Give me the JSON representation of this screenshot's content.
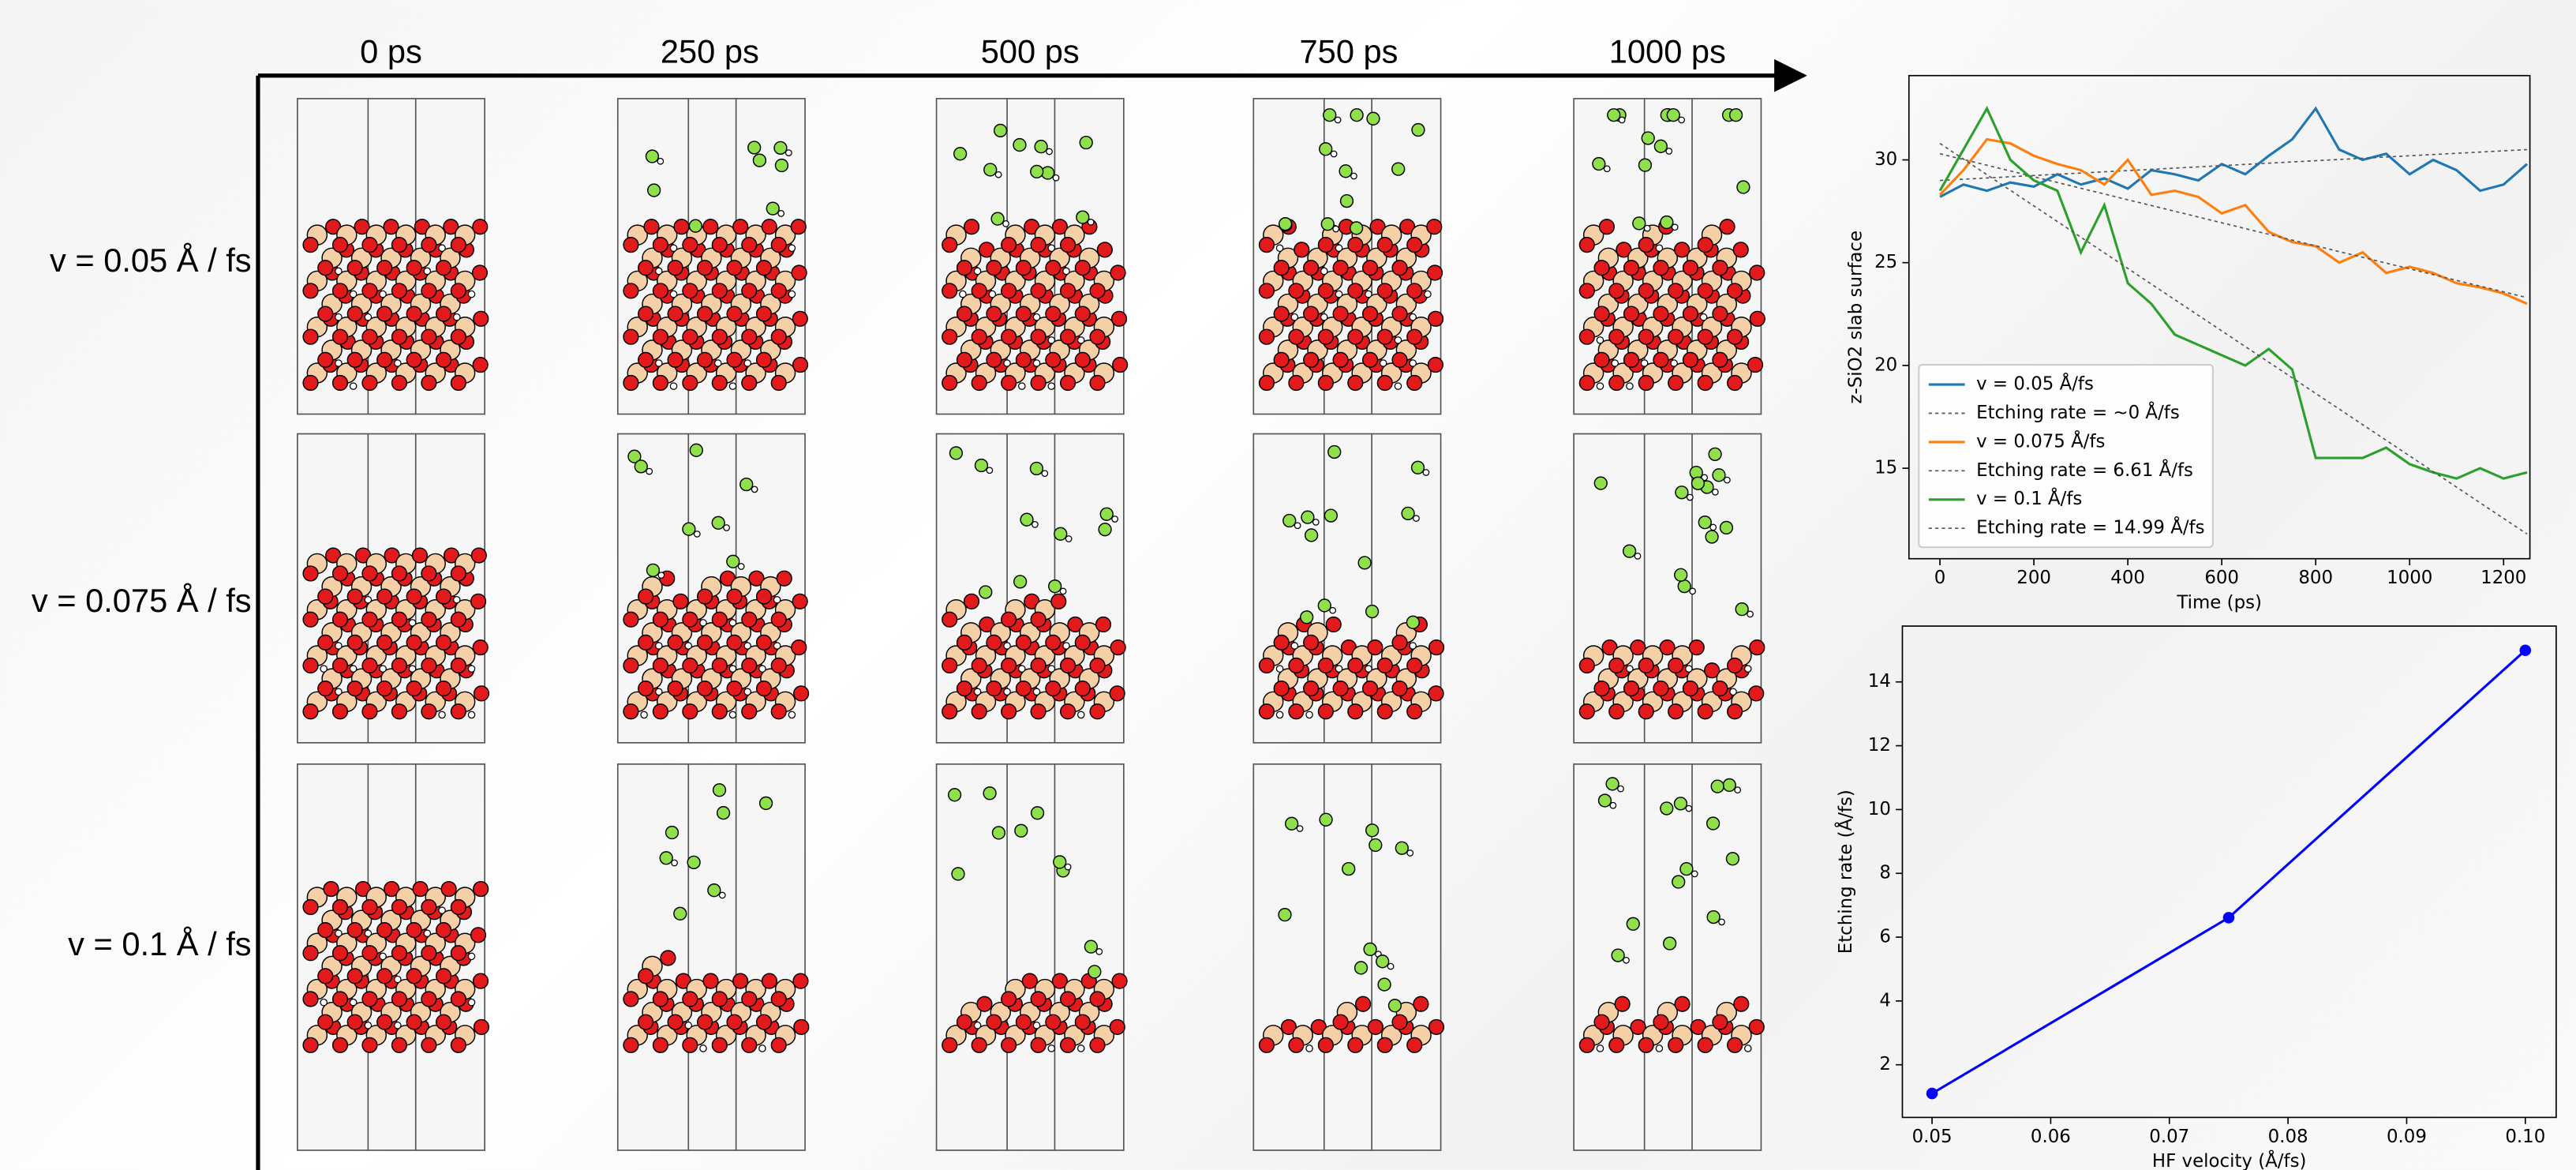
{
  "grid": {
    "columns": [
      "0 ps",
      "250 ps",
      "500 ps",
      "750 ps",
      "1000 ps"
    ],
    "rows": [
      "v = 0.05 Å / fs",
      "v = 0.075 Å / fs",
      "v = 0.1 Å / fs"
    ]
  },
  "chart_data": [
    {
      "type": "line",
      "xlabel": "Time (ps)",
      "ylabel": "z-SiO2 slab surface",
      "xlim": [
        -66,
        1256
      ],
      "ylim": [
        10.6,
        34.1
      ],
      "xticks": [
        0,
        200,
        400,
        600,
        800,
        1000,
        1200
      ],
      "yticks": [
        15,
        20,
        25,
        30
      ],
      "legend": "lower left",
      "series": [
        {
          "name": "v = 0.05 Å/fs",
          "color": "#1f77b4",
          "x": [
            0,
            50,
            100,
            150,
            200,
            250,
            300,
            350,
            400,
            450,
            500,
            550,
            600,
            650,
            700,
            750,
            800,
            850,
            900,
            950,
            1000,
            1050,
            1100,
            1150,
            1200,
            1250
          ],
          "values": [
            28.2,
            28.8,
            28.5,
            28.9,
            28.7,
            29.3,
            28.8,
            29.1,
            28.6,
            29.5,
            29.3,
            29.0,
            29.8,
            29.3,
            30.2,
            31.0,
            32.5,
            30.5,
            30.0,
            30.3,
            29.3,
            30.0,
            29.5,
            28.5,
            28.8,
            29.8
          ]
        },
        {
          "name": "Etching rate =  ~0 Å/fs",
          "color": "#555555",
          "dash": true,
          "x": [
            0,
            1250
          ],
          "values": [
            29.0,
            30.5
          ]
        },
        {
          "name": "v = 0.075 Å/fs",
          "color": "#ff7f0e",
          "x": [
            0,
            50,
            100,
            150,
            200,
            250,
            300,
            350,
            400,
            450,
            500,
            550,
            600,
            650,
            700,
            750,
            800,
            850,
            900,
            950,
            1000,
            1050,
            1100,
            1150,
            1200,
            1250
          ],
          "values": [
            28.3,
            29.5,
            31.0,
            30.8,
            30.2,
            29.8,
            29.5,
            28.8,
            30.0,
            28.3,
            28.5,
            28.2,
            27.4,
            27.8,
            26.5,
            26.0,
            25.8,
            25.0,
            25.5,
            24.5,
            24.8,
            24.5,
            24.0,
            23.8,
            23.5,
            23.0
          ]
        },
        {
          "name": "Etching rate = 6.61 Å/fs",
          "color": "#555555",
          "dash": true,
          "x": [
            0,
            1250
          ],
          "values": [
            30.3,
            23.3
          ]
        },
        {
          "name": "v = 0.1 Å/fs",
          "color": "#2ca02c",
          "x": [
            0,
            50,
            100,
            150,
            200,
            250,
            300,
            350,
            400,
            450,
            500,
            550,
            600,
            650,
            700,
            750,
            800,
            850,
            900,
            950,
            1000,
            1050,
            1100,
            1150,
            1200,
            1250
          ],
          "values": [
            28.5,
            30.5,
            32.5,
            30.0,
            29.0,
            28.5,
            25.5,
            27.8,
            24.0,
            23.0,
            21.5,
            21.0,
            20.5,
            20.0,
            20.8,
            19.8,
            15.5,
            15.5,
            15.5,
            16.0,
            15.2,
            14.8,
            14.5,
            15.0,
            14.5,
            14.8
          ]
        },
        {
          "name": "Etching rate = 14.99 Å/fs",
          "color": "#555555",
          "dash": true,
          "x": [
            0,
            1250
          ],
          "values": [
            30.8,
            11.8
          ]
        }
      ]
    },
    {
      "type": "line",
      "xlabel": "HF velocity (Å/fs)",
      "ylabel": "Etching rate (Å/fs)",
      "xlim": [
        0.0475,
        0.1026
      ],
      "ylim": [
        0.35,
        15.75
      ],
      "xticks": [
        0.05,
        0.06,
        0.07,
        0.08,
        0.09,
        {
          "value": 0.1,
          "label": "0.10"
        }
      ],
      "yticks": [
        2,
        4,
        6,
        8,
        10,
        12,
        14
      ],
      "x": [
        0.05,
        0.075,
        0.1
      ],
      "values": [
        1.1,
        6.61,
        14.99
      ],
      "color": "#0000ff",
      "marker": true
    }
  ]
}
